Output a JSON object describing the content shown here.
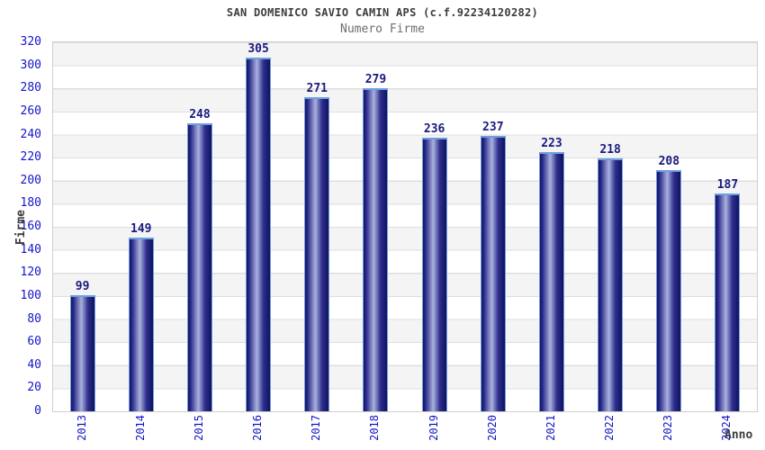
{
  "chart_data": {
    "type": "bar",
    "title": "SAN DOMENICO SAVIO CAMIN APS (c.f.92234120282)",
    "subtitle": "Numero Firme",
    "xlabel": "Anno",
    "ylabel": "Firme",
    "categories": [
      "2013",
      "2014",
      "2015",
      "2016",
      "2017",
      "2018",
      "2019",
      "2020",
      "2021",
      "2022",
      "2023",
      "2024"
    ],
    "values": [
      99,
      149,
      248,
      305,
      271,
      279,
      236,
      237,
      223,
      218,
      208,
      187
    ],
    "ylim": [
      0,
      320
    ],
    "yticks": [
      0,
      20,
      40,
      60,
      80,
      100,
      120,
      140,
      160,
      180,
      200,
      220,
      240,
      260,
      280,
      300,
      320
    ],
    "grid": "horizontal-alternating-bands",
    "legend": "none",
    "bar_label_position": "above",
    "x_tick_rotation_deg": 90,
    "colors": {
      "tick_label": "#1414c8",
      "value_label": "#1a1a80",
      "bar_dark": "#12125e",
      "bar_mid": "#2e2e8e",
      "bar_light": "#a9b2dd",
      "bar_border": "#6d9fe0",
      "band_gray": "#f4f4f4",
      "grid_line": "#dedede",
      "plot_border": "#cfcfcf",
      "title_color": "#3c3c3c",
      "subtitle_color": "#6e6e6e"
    }
  }
}
